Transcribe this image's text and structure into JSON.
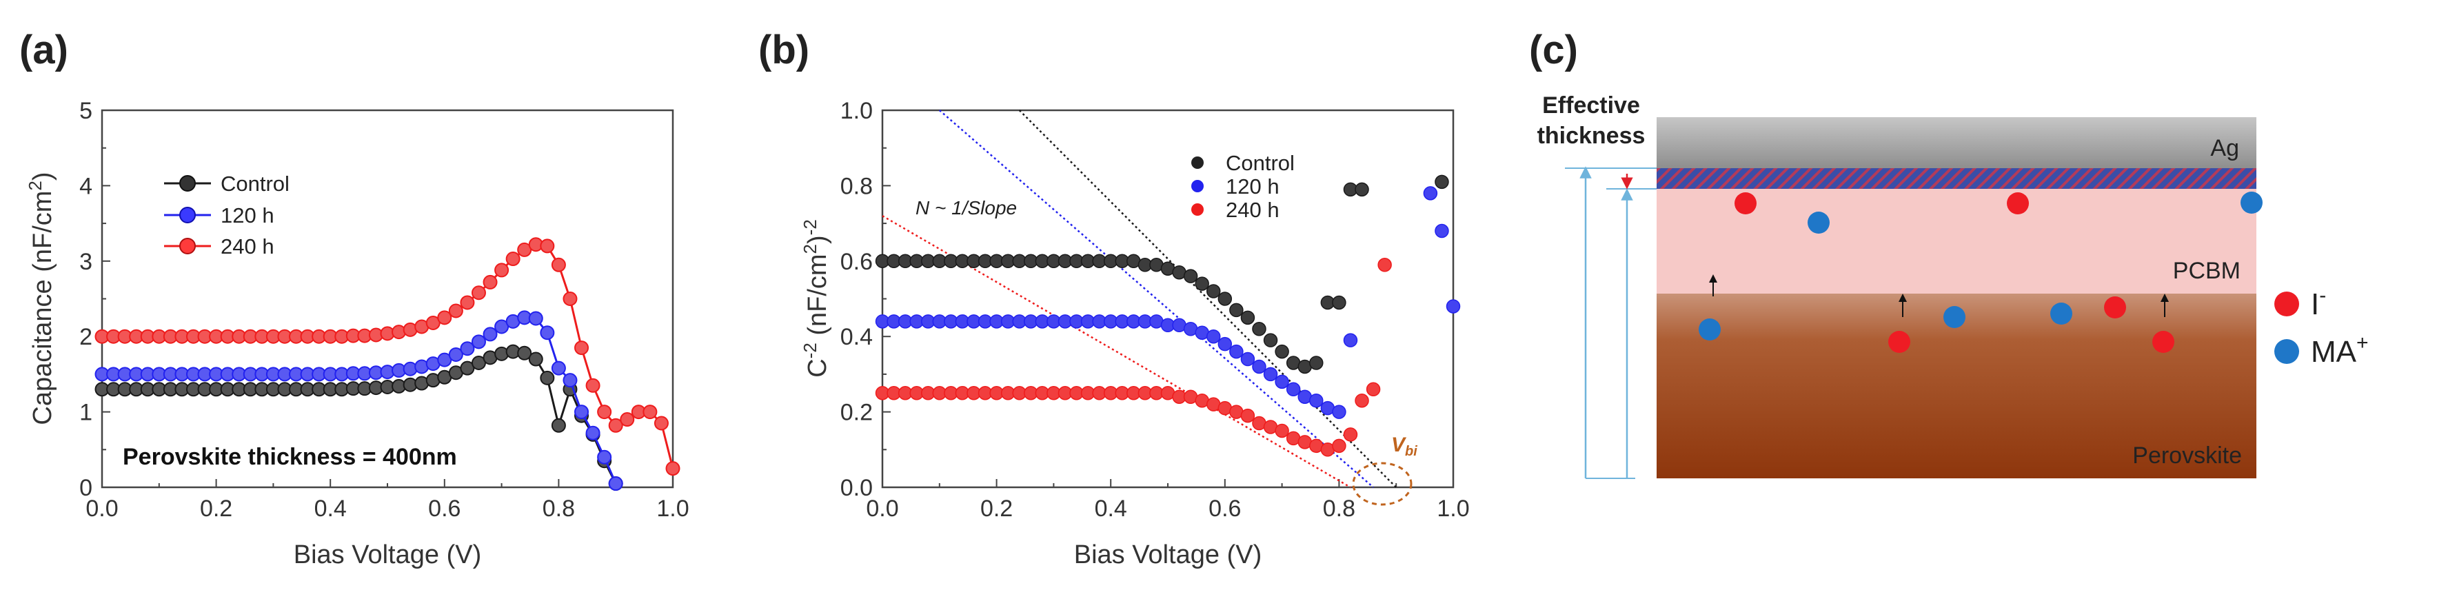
{
  "panel_labels": {
    "a": "(a)",
    "b": "(b)",
    "c": "(c)"
  },
  "colors": {
    "control": "#1a1a1a",
    "h120": "#2222ee",
    "h240": "#ee1c1c",
    "vbi_circle": "#c0641e",
    "ag_top": "#c8c8c8",
    "pcbm": "#f6c9c7",
    "perovskite": "#9a3e10",
    "ion_I": "#ee1c24",
    "ion_MA": "#1f77c8",
    "thickness_line": "#6fb4dc"
  },
  "chart_data": [
    {
      "id": "a",
      "type": "line",
      "xlabel": "Bias Voltage (V)",
      "ylabel": "Capacitance (nF/cm2)",
      "xlim": [
        0,
        1.0
      ],
      "ylim": [
        0,
        5
      ],
      "xticks": [
        "0.0",
        "0.2",
        "0.4",
        "0.6",
        "0.8",
        "1.0"
      ],
      "yticks": [
        "0",
        "1",
        "2",
        "3",
        "4",
        "5"
      ],
      "legend_position": "top-left",
      "annotation": "Perovskite thickness = 400nm",
      "series": [
        {
          "name": "Control",
          "color": "#1a1a1a",
          "x": [
            0,
            0.02,
            0.04,
            0.06,
            0.08,
            0.1,
            0.12,
            0.14,
            0.16,
            0.18,
            0.2,
            0.22,
            0.24,
            0.26,
            0.28,
            0.3,
            0.32,
            0.34,
            0.36,
            0.38,
            0.4,
            0.42,
            0.44,
            0.46,
            0.48,
            0.5,
            0.52,
            0.54,
            0.56,
            0.58,
            0.6,
            0.62,
            0.64,
            0.66,
            0.68,
            0.7,
            0.72,
            0.74,
            0.76,
            0.78,
            0.8,
            0.82,
            0.84,
            0.86,
            0.88,
            0.9
          ],
          "y": [
            1.3,
            1.3,
            1.3,
            1.3,
            1.3,
            1.3,
            1.3,
            1.3,
            1.3,
            1.3,
            1.3,
            1.3,
            1.3,
            1.3,
            1.3,
            1.3,
            1.3,
            1.3,
            1.3,
            1.3,
            1.3,
            1.3,
            1.31,
            1.31,
            1.32,
            1.33,
            1.34,
            1.36,
            1.38,
            1.42,
            1.46,
            1.52,
            1.58,
            1.65,
            1.72,
            1.77,
            1.8,
            1.78,
            1.7,
            1.45,
            0.82,
            1.3,
            0.95,
            0.7,
            0.35,
            0.05
          ]
        },
        {
          "name": "120 h",
          "color": "#2222ee",
          "x": [
            0,
            0.02,
            0.04,
            0.06,
            0.08,
            0.1,
            0.12,
            0.14,
            0.16,
            0.18,
            0.2,
            0.22,
            0.24,
            0.26,
            0.28,
            0.3,
            0.32,
            0.34,
            0.36,
            0.38,
            0.4,
            0.42,
            0.44,
            0.46,
            0.48,
            0.5,
            0.52,
            0.54,
            0.56,
            0.58,
            0.6,
            0.62,
            0.64,
            0.66,
            0.68,
            0.7,
            0.72,
            0.74,
            0.76,
            0.78,
            0.8,
            0.82,
            0.84,
            0.86,
            0.88,
            0.9
          ],
          "y": [
            1.5,
            1.5,
            1.5,
            1.5,
            1.5,
            1.5,
            1.5,
            1.5,
            1.5,
            1.5,
            1.5,
            1.5,
            1.5,
            1.5,
            1.5,
            1.5,
            1.5,
            1.5,
            1.5,
            1.5,
            1.5,
            1.5,
            1.51,
            1.51,
            1.52,
            1.53,
            1.55,
            1.57,
            1.6,
            1.64,
            1.69,
            1.76,
            1.84,
            1.93,
            2.03,
            2.13,
            2.2,
            2.25,
            2.24,
            2.05,
            1.58,
            1.42,
            1.0,
            0.72,
            0.4,
            0.05
          ]
        },
        {
          "name": "240 h",
          "color": "#ee1c1c",
          "x": [
            0,
            0.02,
            0.04,
            0.06,
            0.08,
            0.1,
            0.12,
            0.14,
            0.16,
            0.18,
            0.2,
            0.22,
            0.24,
            0.26,
            0.28,
            0.3,
            0.32,
            0.34,
            0.36,
            0.38,
            0.4,
            0.42,
            0.44,
            0.46,
            0.48,
            0.5,
            0.52,
            0.54,
            0.56,
            0.58,
            0.6,
            0.62,
            0.64,
            0.66,
            0.68,
            0.7,
            0.72,
            0.74,
            0.76,
            0.78,
            0.8,
            0.82,
            0.84,
            0.86,
            0.88,
            0.9,
            0.92,
            0.94,
            0.96,
            0.98,
            1.0
          ],
          "y": [
            2.0,
            2.0,
            2.0,
            2.0,
            2.0,
            2.0,
            2.0,
            2.0,
            2.0,
            2.0,
            2.0,
            2.0,
            2.0,
            2.0,
            2.0,
            2.0,
            2.0,
            2.0,
            2.0,
            2.0,
            2.0,
            2.0,
            2.01,
            2.01,
            2.02,
            2.04,
            2.06,
            2.09,
            2.13,
            2.18,
            2.25,
            2.34,
            2.45,
            2.58,
            2.72,
            2.88,
            3.03,
            3.15,
            3.22,
            3.2,
            2.95,
            2.5,
            1.85,
            1.35,
            1.0,
            0.82,
            0.9,
            1.0,
            1.0,
            0.85,
            0.25
          ]
        }
      ]
    },
    {
      "id": "b",
      "type": "scatter",
      "xlabel": "Bias Voltage (V)",
      "ylabel": "C-2 (nF/cm2)-2",
      "xlim": [
        0,
        1.0
      ],
      "ylim": [
        0,
        1.0
      ],
      "xticks": [
        "0.0",
        "0.2",
        "0.4",
        "0.6",
        "0.8",
        "1.0"
      ],
      "yticks": [
        "0.0",
        "0.2",
        "0.4",
        "0.6",
        "0.8",
        "1.0"
      ],
      "legend_position": "top-right",
      "annotations": [
        "N ~ 1/Slope",
        "Vbi"
      ],
      "series": [
        {
          "name": "Control",
          "color": "#1a1a1a",
          "x": [
            0,
            0.02,
            0.04,
            0.06,
            0.08,
            0.1,
            0.12,
            0.14,
            0.16,
            0.18,
            0.2,
            0.22,
            0.24,
            0.26,
            0.28,
            0.3,
            0.32,
            0.34,
            0.36,
            0.38,
            0.4,
            0.42,
            0.44,
            0.46,
            0.48,
            0.5,
            0.52,
            0.54,
            0.56,
            0.58,
            0.6,
            0.62,
            0.64,
            0.66,
            0.68,
            0.7,
            0.72,
            0.74,
            0.76,
            0.78,
            0.8,
            0.82,
            0.84,
            0.98
          ],
          "y": [
            0.6,
            0.6,
            0.6,
            0.6,
            0.6,
            0.6,
            0.6,
            0.6,
            0.6,
            0.6,
            0.6,
            0.6,
            0.6,
            0.6,
            0.6,
            0.6,
            0.6,
            0.6,
            0.6,
            0.6,
            0.6,
            0.6,
            0.6,
            0.59,
            0.59,
            0.58,
            0.57,
            0.56,
            0.54,
            0.52,
            0.5,
            0.47,
            0.45,
            0.42,
            0.39,
            0.36,
            0.33,
            0.32,
            0.33,
            0.49,
            0.49,
            0.79,
            0.79,
            0.81
          ],
          "fit": {
            "x": [
              0.24,
              0.9
            ],
            "y": [
              1.0,
              0.0
            ]
          }
        },
        {
          "name": "120 h",
          "color": "#2222ee",
          "x": [
            0,
            0.02,
            0.04,
            0.06,
            0.08,
            0.1,
            0.12,
            0.14,
            0.16,
            0.18,
            0.2,
            0.22,
            0.24,
            0.26,
            0.28,
            0.3,
            0.32,
            0.34,
            0.36,
            0.38,
            0.4,
            0.42,
            0.44,
            0.46,
            0.48,
            0.5,
            0.52,
            0.54,
            0.56,
            0.58,
            0.6,
            0.62,
            0.64,
            0.66,
            0.68,
            0.7,
            0.72,
            0.74,
            0.76,
            0.78,
            0.8,
            0.82,
            0.96,
            0.98,
            1.0
          ],
          "y": [
            0.44,
            0.44,
            0.44,
            0.44,
            0.44,
            0.44,
            0.44,
            0.44,
            0.44,
            0.44,
            0.44,
            0.44,
            0.44,
            0.44,
            0.44,
            0.44,
            0.44,
            0.44,
            0.44,
            0.44,
            0.44,
            0.44,
            0.44,
            0.44,
            0.44,
            0.43,
            0.43,
            0.42,
            0.41,
            0.4,
            0.38,
            0.36,
            0.34,
            0.32,
            0.3,
            0.28,
            0.26,
            0.24,
            0.23,
            0.21,
            0.2,
            0.39,
            0.78,
            0.68,
            0.48
          ],
          "fit": {
            "x": [
              0.1,
              0.86
            ],
            "y": [
              1.0,
              0.0
            ]
          }
        },
        {
          "name": "240 h",
          "color": "#ee1c1c",
          "x": [
            0,
            0.02,
            0.04,
            0.06,
            0.08,
            0.1,
            0.12,
            0.14,
            0.16,
            0.18,
            0.2,
            0.22,
            0.24,
            0.26,
            0.28,
            0.3,
            0.32,
            0.34,
            0.36,
            0.38,
            0.4,
            0.42,
            0.44,
            0.46,
            0.48,
            0.5,
            0.52,
            0.54,
            0.56,
            0.58,
            0.6,
            0.62,
            0.64,
            0.66,
            0.68,
            0.7,
            0.72,
            0.74,
            0.76,
            0.78,
            0.8,
            0.82,
            0.84,
            0.86,
            0.88
          ],
          "y": [
            0.25,
            0.25,
            0.25,
            0.25,
            0.25,
            0.25,
            0.25,
            0.25,
            0.25,
            0.25,
            0.25,
            0.25,
            0.25,
            0.25,
            0.25,
            0.25,
            0.25,
            0.25,
            0.25,
            0.25,
            0.25,
            0.25,
            0.25,
            0.25,
            0.25,
            0.25,
            0.24,
            0.24,
            0.23,
            0.22,
            0.21,
            0.2,
            0.19,
            0.17,
            0.16,
            0.15,
            0.13,
            0.12,
            0.11,
            0.1,
            0.11,
            0.14,
            0.23,
            0.26,
            0.59
          ],
          "fit": {
            "x": [
              0.0,
              0.82
            ],
            "y": [
              0.72,
              0.0
            ]
          }
        }
      ]
    }
  ],
  "panel_c": {
    "thickness_label_line1": "Effective",
    "thickness_label_line2": "thickness",
    "layer_ag": "Ag",
    "layer_pcbm": "PCBM",
    "layer_perovskite": "Perovskite",
    "legend_I": "I",
    "legend_I_sup": "-",
    "legend_MA": "MA",
    "legend_MA_sup": "+"
  }
}
